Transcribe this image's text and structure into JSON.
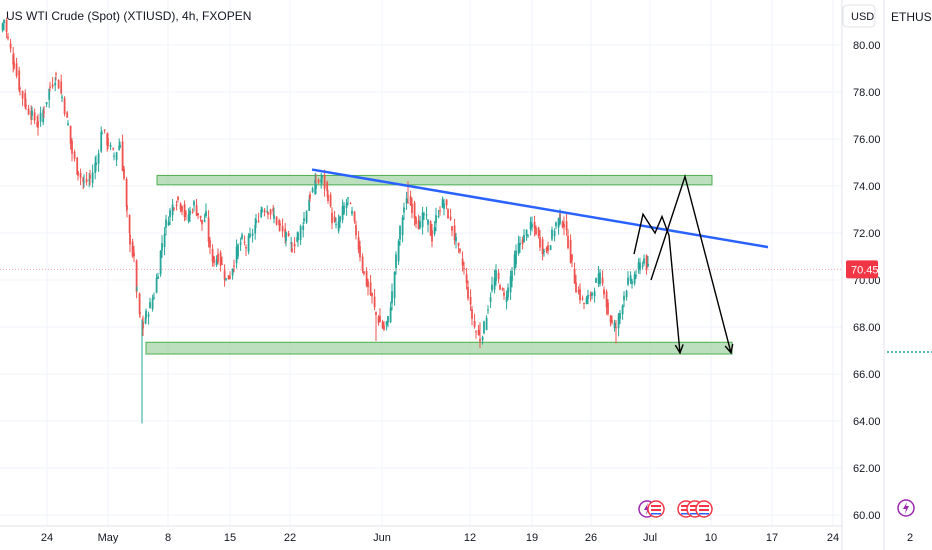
{
  "header": {
    "title": "US WTI Crude (Spot) (XTIUSD), 4h, FXOPEN",
    "currency_button": "USD",
    "side_symbol": "ETHUSDT,"
  },
  "colors": {
    "up": "#26a69a",
    "down": "#ef5350",
    "zone_fill": "#a5d6a7",
    "zone_stroke": "#4caf50",
    "trendline": "#2962ff",
    "projection": "#000000",
    "price_badge": "#f23645",
    "price_line": "#f7a8ae"
  },
  "chart_data": {
    "type": "candlestick",
    "title": "US WTI Crude (Spot) (XTIUSD), 4h, FXOPEN",
    "timeframe": "4h",
    "ylim": [
      59.5,
      81.5
    ],
    "y_ticks": [
      "60.00",
      "62.00",
      "64.00",
      "66.00",
      "68.00",
      "70.00",
      "72.00",
      "74.00",
      "76.00",
      "78.00",
      "80.00"
    ],
    "x_ticks": [
      "24",
      "May",
      "8",
      "15",
      "22",
      "Jun",
      "12",
      "19",
      "26",
      "Jul",
      "10",
      "17",
      "24",
      "2"
    ],
    "last_price": "70.45",
    "grid": true,
    "price_path": [
      [
        0,
        80.6
      ],
      [
        4,
        81.1
      ],
      [
        8,
        80.2
      ],
      [
        14,
        79.2
      ],
      [
        20,
        78.1
      ],
      [
        26,
        77.4
      ],
      [
        32,
        77.0
      ],
      [
        38,
        76.6
      ],
      [
        44,
        77.3
      ],
      [
        50,
        78.2
      ],
      [
        56,
        78.7
      ],
      [
        62,
        77.8
      ],
      [
        68,
        76.6
      ],
      [
        72,
        75.4
      ],
      [
        78,
        74.6
      ],
      [
        84,
        74.1
      ],
      [
        90,
        74.3
      ],
      [
        96,
        75.0
      ],
      [
        102,
        76.4
      ],
      [
        108,
        75.8
      ],
      [
        114,
        75.3
      ],
      [
        120,
        75.8
      ],
      [
        124,
        74.3
      ],
      [
        127,
        72.8
      ],
      [
        130,
        71.7
      ],
      [
        134,
        70.8
      ],
      [
        137,
        69.4
      ],
      [
        140,
        68.4
      ],
      [
        143,
        68.0
      ],
      [
        146,
        68.5
      ],
      [
        150,
        68.9
      ],
      [
        154,
        69.4
      ],
      [
        158,
        70.4
      ],
      [
        162,
        71.6
      ],
      [
        166,
        72.4
      ],
      [
        170,
        72.9
      ],
      [
        174,
        73.3
      ],
      [
        178,
        73.4
      ],
      [
        182,
        73.1
      ],
      [
        186,
        72.6
      ],
      [
        190,
        72.9
      ],
      [
        194,
        73.2
      ],
      [
        198,
        72.8
      ],
      [
        202,
        72.4
      ],
      [
        206,
        72.7
      ],
      [
        210,
        71.2
      ],
      [
        214,
        70.8
      ],
      [
        218,
        71.0
      ],
      [
        222,
        70.6
      ],
      [
        226,
        70.0
      ],
      [
        230,
        70.2
      ],
      [
        234,
        70.8
      ],
      [
        238,
        71.4
      ],
      [
        242,
        71.7
      ],
      [
        246,
        71.4
      ],
      [
        250,
        71.8
      ],
      [
        256,
        72.4
      ],
      [
        262,
        73.1
      ],
      [
        268,
        73.0
      ],
      [
        274,
        72.7
      ],
      [
        280,
        72.2
      ],
      [
        286,
        71.8
      ],
      [
        292,
        71.4
      ],
      [
        298,
        71.9
      ],
      [
        304,
        72.6
      ],
      [
        310,
        73.6
      ],
      [
        316,
        74.1
      ],
      [
        322,
        74.3
      ],
      [
        328,
        73.6
      ],
      [
        332,
        72.6
      ],
      [
        336,
        72.2
      ],
      [
        340,
        72.6
      ],
      [
        344,
        73.1
      ],
      [
        348,
        73.4
      ],
      [
        352,
        72.8
      ],
      [
        356,
        72.0
      ],
      [
        360,
        71.1
      ],
      [
        364,
        70.2
      ],
      [
        368,
        69.7
      ],
      [
        372,
        69.2
      ],
      [
        376,
        68.5
      ],
      [
        380,
        68.2
      ],
      [
        384,
        67.9
      ],
      [
        388,
        68.3
      ],
      [
        392,
        69.4
      ],
      [
        396,
        70.9
      ],
      [
        400,
        72.1
      ],
      [
        404,
        73.1
      ],
      [
        408,
        73.4
      ],
      [
        412,
        73.1
      ],
      [
        416,
        72.6
      ],
      [
        420,
        72.3
      ],
      [
        424,
        72.8
      ],
      [
        428,
        72.4
      ],
      [
        432,
        71.8
      ],
      [
        436,
        72.6
      ],
      [
        440,
        73.1
      ],
      [
        444,
        73.3
      ],
      [
        448,
        72.8
      ],
      [
        452,
        72.2
      ],
      [
        456,
        71.6
      ],
      [
        460,
        71.0
      ],
      [
        464,
        70.4
      ],
      [
        468,
        69.4
      ],
      [
        472,
        68.4
      ],
      [
        476,
        67.8
      ],
      [
        480,
        67.5
      ],
      [
        484,
        68.0
      ],
      [
        488,
        68.9
      ],
      [
        492,
        69.7
      ],
      [
        496,
        70.2
      ],
      [
        500,
        69.8
      ],
      [
        504,
        69.2
      ],
      [
        508,
        69.6
      ],
      [
        512,
        70.4
      ],
      [
        516,
        71.1
      ],
      [
        520,
        71.6
      ],
      [
        524,
        71.8
      ],
      [
        528,
        72.1
      ],
      [
        532,
        72.3
      ],
      [
        536,
        72.1
      ],
      [
        540,
        71.6
      ],
      [
        544,
        71.2
      ],
      [
        548,
        71.4
      ],
      [
        552,
        71.9
      ],
      [
        556,
        72.4
      ],
      [
        560,
        72.6
      ],
      [
        564,
        72.4
      ],
      [
        568,
        71.6
      ],
      [
        572,
        70.6
      ],
      [
        576,
        69.7
      ],
      [
        580,
        69.3
      ],
      [
        584,
        69.0
      ],
      [
        588,
        69.2
      ],
      [
        592,
        69.5
      ],
      [
        596,
        69.9
      ],
      [
        600,
        70.1
      ],
      [
        604,
        69.6
      ],
      [
        608,
        68.6
      ],
      [
        612,
        68.1
      ],
      [
        616,
        68.0
      ],
      [
        620,
        68.6
      ],
      [
        624,
        69.4
      ],
      [
        628,
        69.9
      ],
      [
        632,
        70.0
      ],
      [
        636,
        70.3
      ],
      [
        640,
        70.6
      ],
      [
        644,
        70.9
      ],
      [
        648,
        70.45
      ]
    ],
    "wicks": [
      [
        142,
        63.9,
        68.3
      ],
      [
        480,
        67.1,
        68.2
      ],
      [
        376,
        67.4,
        68.6
      ],
      [
        616,
        67.3,
        68.3
      ],
      [
        316,
        74.1,
        74.5
      ],
      [
        408,
        73.4,
        74.2
      ],
      [
        560,
        72.6,
        72.9
      ]
    ],
    "annotations": {
      "resistance_zone": {
        "x": [
          157,
          712
        ],
        "y": [
          74.05,
          74.45
        ]
      },
      "support_zone": {
        "x": [
          146,
          732
        ],
        "y": [
          66.85,
          67.35
        ]
      },
      "trendline": {
        "points": [
          [
            312,
            74.7
          ],
          [
            768,
            71.4
          ]
        ]
      },
      "projection_path_1": {
        "points": [
          [
            634,
            71.1
          ],
          [
            643,
            72.8
          ],
          [
            655,
            72.0
          ],
          [
            662,
            72.7
          ],
          [
            669,
            71.9
          ],
          [
            680,
            66.9
          ]
        ]
      },
      "projection_path_2": {
        "points": [
          [
            651,
            70.0
          ],
          [
            685,
            74.4
          ],
          [
            731,
            66.9
          ]
        ]
      }
    }
  }
}
